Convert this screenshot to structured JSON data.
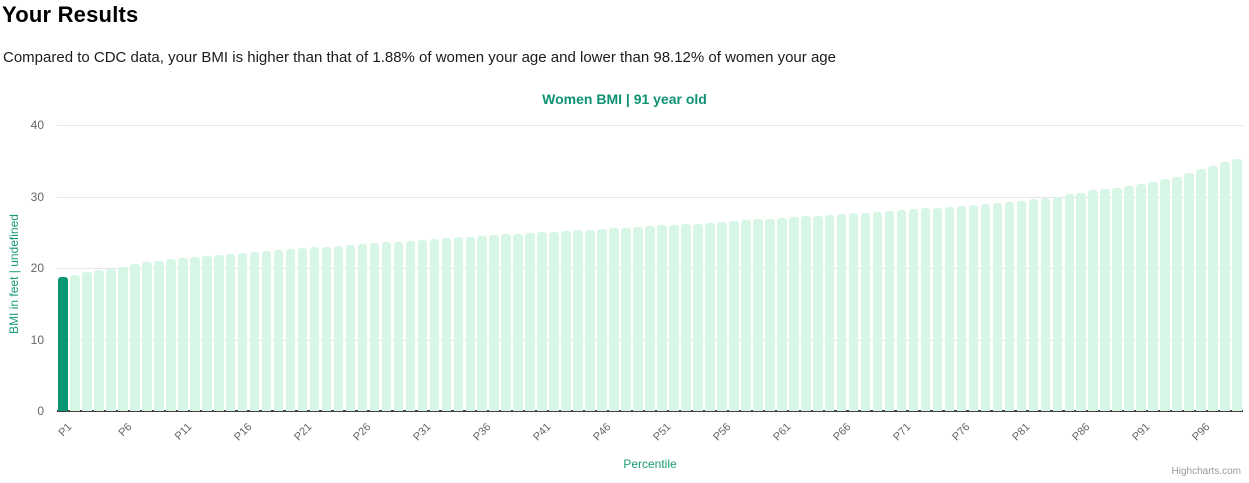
{
  "page": {
    "title": "Your Results",
    "subtitle": "Compared to CDC data, your BMI is higher than that of 1.88% of women your age and lower than 98.12% of women your age"
  },
  "chart": {
    "title": "Women BMI | 91 year old",
    "x_axis_title": "Percentile",
    "y_axis_title": "BMI in feet | undefined",
    "credit": "Highcharts.com",
    "colors": {
      "bar": "#d8f6e6",
      "highlight_bar": "#089673",
      "title": "#0f9274",
      "axis_title": "#1a9a78",
      "tick_label": "#666666",
      "grid": "#e6e6e6",
      "baseline": "#424242",
      "credit": "#999999"
    }
  },
  "chart_data": {
    "type": "bar",
    "title": "Women BMI | 91 year old",
    "xlabel": "Percentile",
    "ylabel": "BMI in feet | undefined",
    "ylim": [
      0,
      40
    ],
    "yticks": [
      0,
      10,
      20,
      30,
      40
    ],
    "grid": "horizontal",
    "legend_position": "none",
    "x_label_every": 5,
    "highlighted_category": "P1",
    "highlighted_index": 0,
    "categories": [
      "P1",
      "P2",
      "P3",
      "P4",
      "P5",
      "P6",
      "P7",
      "P8",
      "P9",
      "P10",
      "P11",
      "P12",
      "P13",
      "P14",
      "P15",
      "P16",
      "P17",
      "P18",
      "P19",
      "P20",
      "P21",
      "P22",
      "P23",
      "P24",
      "P25",
      "P26",
      "P27",
      "P28",
      "P29",
      "P30",
      "P31",
      "P32",
      "P33",
      "P34",
      "P35",
      "P36",
      "P37",
      "P38",
      "P39",
      "P40",
      "P41",
      "P42",
      "P43",
      "P44",
      "P45",
      "P46",
      "P47",
      "P48",
      "P49",
      "P50",
      "P51",
      "P52",
      "P53",
      "P54",
      "P55",
      "P56",
      "P57",
      "P58",
      "P59",
      "P60",
      "P61",
      "P62",
      "P63",
      "P64",
      "P65",
      "P66",
      "P67",
      "P68",
      "P69",
      "P70",
      "P71",
      "P72",
      "P73",
      "P74",
      "P75",
      "P76",
      "P77",
      "P78",
      "P79",
      "P80",
      "P81",
      "P82",
      "P83",
      "P84",
      "P85",
      "P86",
      "P87",
      "P88",
      "P89",
      "P90",
      "P91",
      "P92",
      "P93",
      "P94",
      "P95",
      "P96",
      "P97",
      "P98",
      "P99"
    ],
    "values": [
      18.7,
      19.0,
      19.4,
      19.7,
      19.9,
      20.2,
      20.5,
      20.8,
      21.0,
      21.2,
      21.35,
      21.5,
      21.7,
      21.85,
      22.0,
      22.1,
      22.25,
      22.4,
      22.5,
      22.65,
      22.8,
      22.9,
      23.0,
      23.1,
      23.25,
      23.35,
      23.5,
      23.6,
      23.7,
      23.8,
      23.95,
      24.05,
      24.15,
      24.3,
      24.35,
      24.5,
      24.6,
      24.7,
      24.8,
      24.9,
      25.0,
      25.05,
      25.15,
      25.25,
      25.3,
      25.45,
      25.55,
      25.65,
      25.75,
      25.85,
      25.95,
      26.05,
      26.1,
      26.2,
      26.3,
      26.5,
      26.6,
      26.65,
      26.8,
      26.9,
      27.0,
      27.15,
      27.25,
      27.3,
      27.4,
      27.55,
      27.65,
      27.7,
      27.9,
      28.0,
      28.15,
      28.25,
      28.35,
      28.45,
      28.6,
      28.65,
      28.85,
      28.95,
      29.1,
      29.25,
      29.4,
      29.6,
      29.75,
      29.9,
      30.3,
      30.55,
      30.85,
      31.05,
      31.2,
      31.5,
      31.8,
      32.1,
      32.4,
      32.7,
      33.3,
      33.8,
      34.3,
      34.8,
      35.2
    ]
  }
}
